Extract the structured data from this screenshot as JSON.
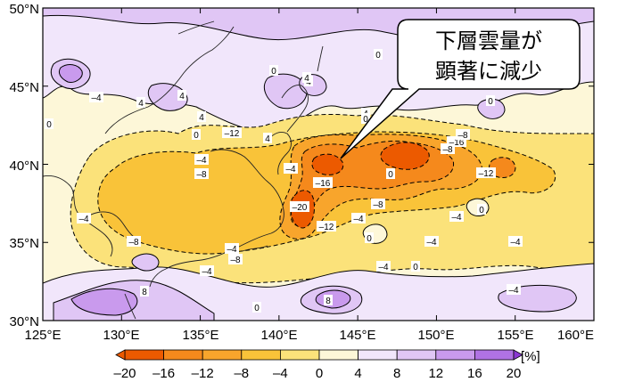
{
  "map": {
    "lat_labels": [
      "50°N",
      "45°N",
      "40°N",
      "35°N",
      "30°N"
    ],
    "lon_labels": [
      "125°E",
      "130°E",
      "135°E",
      "140°E",
      "145°E",
      "150°E",
      "155°E",
      "160°E"
    ],
    "extent": {
      "lon": [
        125,
        160
      ],
      "lat": [
        30,
        50
      ]
    },
    "contour_labels": [
      "0",
      "4",
      "0",
      "4",
      "4",
      "0",
      "4",
      "0",
      "4",
      "4",
      "–4",
      "–12",
      "–16",
      "–8",
      "–8",
      "0",
      "–4",
      "–8",
      "–16",
      "–20",
      "–12",
      "–8",
      "–4",
      "–4",
      "–4",
      "–4",
      "–8",
      "–4",
      "–8",
      "–12",
      "–4",
      "0",
      "–4",
      "0",
      "–4",
      "0",
      "8",
      "8",
      "0",
      "–4",
      "0",
      "–4",
      "0",
      "4"
    ],
    "colors": {
      "neg20": "#ec5a00",
      "neg16": "#f5891c",
      "neg12": "#f8a52c",
      "neg8": "#f9c339",
      "neg4": "#fbe27a",
      "zero": "#fdf7d8",
      "pos0": "#f1e6fb",
      "pos4": "#e0c6f5",
      "pos8": "#c99aed",
      "pos12": "#b072e4",
      "pos16": "#9a4fdb",
      "pos20": "#8a36d2"
    }
  },
  "callout": {
    "line1": "下層雲量が",
    "line2": "顕著に減少"
  },
  "colorbar": {
    "ticks": [
      "–20",
      "–16",
      "–12",
      "–8",
      "–4",
      "0",
      "4",
      "8",
      "12",
      "16",
      "20"
    ],
    "unit": "[%]",
    "colors": [
      "#ec5a00",
      "#f5891c",
      "#f8a52c",
      "#f9c339",
      "#fbe27a",
      "#fdf7d8",
      "#f1e6fb",
      "#e0c6f5",
      "#c99aed",
      "#b072e4"
    ]
  }
}
